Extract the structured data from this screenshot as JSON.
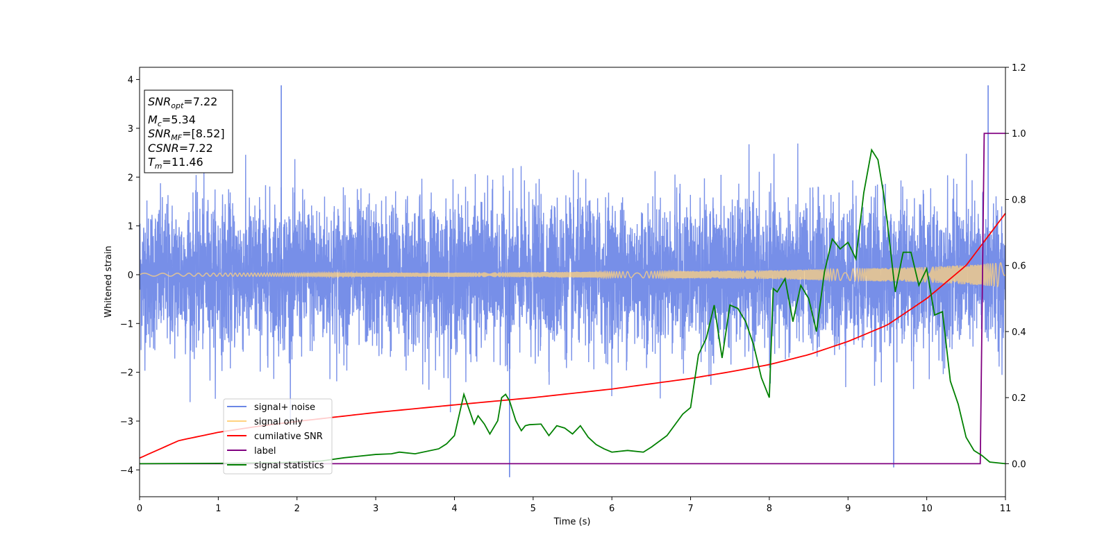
{
  "chart_data": {
    "type": "line",
    "title": "",
    "xlabel": "Time (s)",
    "ylabel": "Whitened strain",
    "xlim": [
      0,
      11
    ],
    "ylim": [
      -4.55,
      4.25
    ],
    "ylim_right": [
      -0.1,
      1.2
    ],
    "x_ticks": [
      "0",
      "1",
      "2",
      "3",
      "4",
      "5",
      "6",
      "7",
      "8",
      "9",
      "10",
      "11"
    ],
    "y_ticks": [
      "−4",
      "−3",
      "−2",
      "−1",
      "0",
      "1",
      "2",
      "3",
      "4"
    ],
    "y_ticks_right": [
      "0.0",
      "0.2",
      "0.4",
      "0.6",
      "0.8",
      "1.0",
      "1.2"
    ],
    "grid": false,
    "legend_placement": "lower-left",
    "info_box": {
      "snr_opt": {
        "sym": "SNR",
        "sub": "opt",
        "val": "=7.22"
      },
      "mc": {
        "sym": "M",
        "sub": "c",
        "val": "=5.34"
      },
      "snr_mf": {
        "sym": "SNR",
        "sub": "MF",
        "val": "=[8.52]"
      },
      "csnr": {
        "sym": "CSNR",
        "sub": "",
        "val": "=7.22"
      },
      "tm": {
        "sym": "T",
        "sub": "m",
        "val": "=11.46"
      }
    },
    "series": [
      {
        "name": "signal+ noise",
        "color": "#6b86e6",
        "axis": "left",
        "noise_std": 0.75,
        "max_abs": 3.9,
        "min_value": -4.15
      },
      {
        "name": "signal only",
        "color": "#ffd27f",
        "axis": "left",
        "amplitude_x": [
          0,
          2,
          4,
          6,
          8,
          9,
          10,
          10.5,
          11
        ],
        "amplitude": [
          0.03,
          0.035,
          0.045,
          0.06,
          0.09,
          0.12,
          0.16,
          0.2,
          0.25
        ]
      },
      {
        "name": "cumilative SNR",
        "color": "#ff0000",
        "axis": "right",
        "x": [
          0,
          0.5,
          1,
          1.5,
          2,
          3,
          4,
          5,
          6,
          7,
          7.5,
          8,
          8.5,
          9,
          9.5,
          10,
          10.5,
          11
        ],
        "y": [
          0.017,
          0.07,
          0.095,
          0.113,
          0.128,
          0.155,
          0.178,
          0.2,
          0.226,
          0.258,
          0.278,
          0.3,
          0.33,
          0.37,
          0.42,
          0.5,
          0.6,
          0.758
        ]
      },
      {
        "name": "label",
        "color": "#800080",
        "axis": "right",
        "x": [
          0,
          10.68,
          10.73,
          11
        ],
        "y": [
          0,
          0,
          1,
          1
        ]
      },
      {
        "name": "signal statistics",
        "color": "#008000",
        "axis": "right",
        "x": [
          0,
          1,
          1.8,
          2.3,
          2.6,
          3,
          3.2,
          3.3,
          3.5,
          3.8,
          3.9,
          4,
          4.12,
          4.2,
          4.25,
          4.3,
          4.38,
          4.45,
          4.55,
          4.6,
          4.65,
          4.7,
          4.78,
          4.85,
          4.9,
          4.95,
          5.1,
          5.2,
          5.3,
          5.4,
          5.5,
          5.6,
          5.7,
          5.8,
          5.9,
          6.0,
          6.2,
          6.4,
          6.5,
          6.7,
          6.9,
          7.0,
          7.1,
          7.2,
          7.3,
          7.4,
          7.5,
          7.6,
          7.7,
          7.8,
          7.9,
          8.0,
          8.05,
          8.1,
          8.2,
          8.3,
          8.4,
          8.5,
          8.6,
          8.7,
          8.8,
          8.9,
          9.0,
          9.1,
          9.2,
          9.3,
          9.38,
          9.45,
          9.5,
          9.6,
          9.7,
          9.8,
          9.9,
          10.0,
          10.1,
          10.2,
          10.3,
          10.4,
          10.5,
          10.6,
          10.7,
          10.8,
          11
        ],
        "y": [
          0,
          0.001,
          0.003,
          0.008,
          0.018,
          0.028,
          0.03,
          0.035,
          0.03,
          0.045,
          0.06,
          0.085,
          0.21,
          0.155,
          0.12,
          0.145,
          0.12,
          0.09,
          0.13,
          0.2,
          0.21,
          0.19,
          0.13,
          0.1,
          0.115,
          0.118,
          0.12,
          0.085,
          0.115,
          0.108,
          0.09,
          0.115,
          0.08,
          0.058,
          0.045,
          0.035,
          0.04,
          0.035,
          0.05,
          0.085,
          0.15,
          0.17,
          0.33,
          0.38,
          0.48,
          0.32,
          0.48,
          0.47,
          0.43,
          0.36,
          0.26,
          0.2,
          0.53,
          0.52,
          0.56,
          0.43,
          0.54,
          0.5,
          0.4,
          0.58,
          0.68,
          0.65,
          0.67,
          0.62,
          0.82,
          0.95,
          0.92,
          0.82,
          0.73,
          0.52,
          0.64,
          0.64,
          0.54,
          0.59,
          0.45,
          0.46,
          0.25,
          0.18,
          0.08,
          0.04,
          0.025,
          0.005,
          0
        ]
      }
    ]
  }
}
